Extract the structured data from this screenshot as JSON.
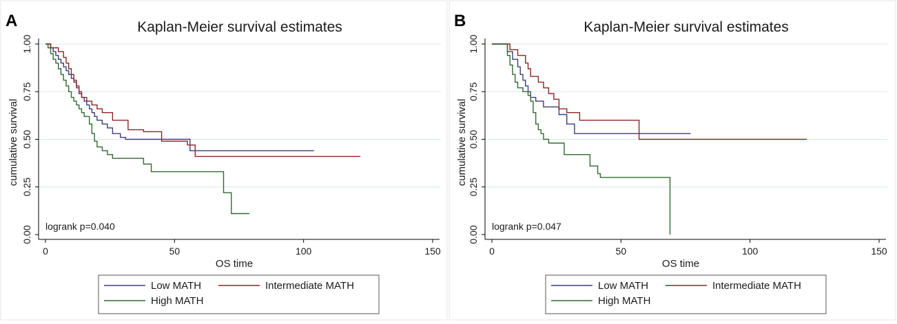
{
  "chart_data": [
    {
      "type": "line",
      "panel_label": "A",
      "title": "Kaplan-Meier survival estimates",
      "xlabel": "OS time",
      "ylabel": "cumulative survival",
      "xlim": [
        0,
        150
      ],
      "ylim": [
        0,
        1
      ],
      "xticks": [
        "0",
        "50",
        "100",
        "150"
      ],
      "yticks": [
        "0.00",
        "0.25",
        "0.50",
        "0.75",
        "1.00"
      ],
      "grid": true,
      "annotation": "logrank p=0.040",
      "legend_position": "bottom",
      "series": [
        {
          "name": "Low MATH",
          "color": "#3b3b7a",
          "x": [
            0,
            2,
            3,
            4,
            5,
            6,
            7,
            8,
            9,
            10,
            11,
            12,
            13,
            14,
            15,
            16,
            17,
            18,
            19,
            20,
            22,
            24,
            26,
            29,
            31,
            56,
            104
          ],
          "y": [
            1.0,
            0.98,
            0.96,
            0.94,
            0.92,
            0.9,
            0.88,
            0.86,
            0.84,
            0.82,
            0.8,
            0.77,
            0.74,
            0.72,
            0.7,
            0.68,
            0.66,
            0.64,
            0.62,
            0.6,
            0.58,
            0.56,
            0.53,
            0.51,
            0.5,
            0.44,
            0.44
          ]
        },
        {
          "name": "Intermediate MATH",
          "color": "#8b2525",
          "x": [
            0,
            2,
            5,
            7,
            8,
            9,
            10,
            11,
            12,
            13,
            14,
            16,
            18,
            20,
            22,
            26,
            32,
            38,
            45,
            55,
            58,
            122
          ],
          "y": [
            1.0,
            0.98,
            0.96,
            0.93,
            0.9,
            0.87,
            0.84,
            0.81,
            0.78,
            0.75,
            0.72,
            0.7,
            0.68,
            0.66,
            0.64,
            0.6,
            0.55,
            0.54,
            0.49,
            0.47,
            0.41,
            0.41
          ]
        },
        {
          "name": "High MATH",
          "color": "#2f6a2f",
          "x": [
            0,
            1,
            2,
            3,
            4,
            5,
            6,
            7,
            8,
            9,
            10,
            11,
            12,
            13,
            14,
            15,
            17,
            18,
            19,
            20,
            22,
            24,
            26,
            38,
            41,
            55,
            69,
            72,
            79
          ],
          "y": [
            1.0,
            0.98,
            0.95,
            0.92,
            0.9,
            0.87,
            0.84,
            0.81,
            0.78,
            0.75,
            0.72,
            0.7,
            0.68,
            0.66,
            0.64,
            0.62,
            0.58,
            0.53,
            0.49,
            0.46,
            0.44,
            0.42,
            0.4,
            0.37,
            0.33,
            0.33,
            0.22,
            0.11,
            0.11
          ]
        }
      ]
    },
    {
      "type": "line",
      "panel_label": "B",
      "title": "Kaplan-Meier survival estimates",
      "xlabel": "OS time",
      "ylabel": "cumulative survival",
      "xlim": [
        0,
        150
      ],
      "ylim": [
        0,
        1
      ],
      "xticks": [
        "0",
        "50",
        "100",
        "150"
      ],
      "yticks": [
        "0.00",
        "0.25",
        "0.50",
        "0.75",
        "1.00"
      ],
      "grid": true,
      "annotation": "logrank p=0.047",
      "legend_position": "bottom",
      "series": [
        {
          "name": "Low MATH",
          "color": "#3b3b7a",
          "x": [
            0,
            6,
            8,
            10,
            11,
            12,
            13,
            14,
            15,
            17,
            20,
            21,
            26,
            29,
            32,
            77
          ],
          "y": [
            1.0,
            0.96,
            0.92,
            0.88,
            0.84,
            0.81,
            0.78,
            0.75,
            0.72,
            0.7,
            0.67,
            0.67,
            0.63,
            0.58,
            0.53,
            0.53
          ]
        },
        {
          "name": "Intermediate MATH",
          "color": "#8b2525",
          "x": [
            0,
            7,
            10,
            13,
            14,
            15,
            18,
            20,
            22,
            24,
            26,
            29,
            34,
            37,
            57,
            122
          ],
          "y": [
            1.0,
            0.97,
            0.94,
            0.9,
            0.87,
            0.83,
            0.8,
            0.77,
            0.74,
            0.71,
            0.66,
            0.64,
            0.6,
            0.6,
            0.5,
            0.5
          ]
        },
        {
          "name": "High MATH",
          "color": "#2f6a2f",
          "x": [
            0,
            6,
            7,
            8,
            9,
            10,
            12,
            14,
            15,
            16,
            17,
            18,
            19,
            20,
            22,
            28,
            38,
            41,
            42,
            69,
            69
          ],
          "y": [
            1.0,
            0.94,
            0.89,
            0.84,
            0.8,
            0.77,
            0.75,
            0.73,
            0.7,
            0.64,
            0.58,
            0.55,
            0.53,
            0.5,
            0.48,
            0.42,
            0.36,
            0.32,
            0.3,
            0.3,
            0.0
          ]
        }
      ]
    }
  ]
}
